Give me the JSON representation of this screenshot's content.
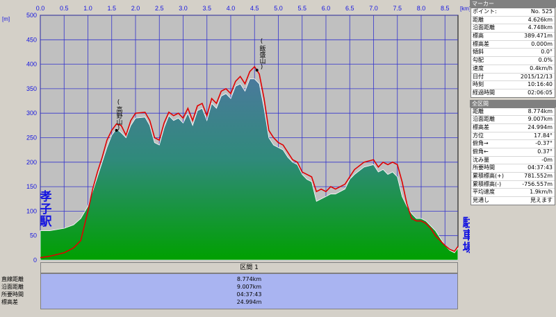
{
  "chart_data": {
    "type": "area",
    "x_unit_label": "[km]",
    "y_unit_label": "[m]",
    "x_ticks": [
      0.0,
      0.5,
      1.0,
      1.5,
      2.0,
      2.5,
      3.0,
      3.5,
      4.0,
      4.5,
      5.0,
      5.5,
      6.0,
      6.5,
      7.0,
      7.5,
      8.0,
      8.5
    ],
    "y_ticks": [
      0,
      50,
      100,
      150,
      200,
      250,
      300,
      350,
      400,
      450,
      500
    ],
    "xlim": [
      0,
      8.774
    ],
    "ylim": [
      0,
      500
    ],
    "grid": true,
    "colors": {
      "plot_bg": "#c0c0c0",
      "grid": "#3333cc",
      "fill_top": "#4a7a9c",
      "fill_bottom": "#00a000",
      "track_line": "#e00000"
    },
    "elevation_fill": {
      "x": [
        0,
        0.2,
        0.5,
        0.7,
        0.85,
        1.0,
        1.1,
        1.2,
        1.3,
        1.4,
        1.5,
        1.6,
        1.7,
        1.8,
        1.9,
        2.0,
        2.2,
        2.3,
        2.4,
        2.5,
        2.6,
        2.7,
        2.8,
        2.9,
        3.0,
        3.1,
        3.2,
        3.3,
        3.4,
        3.5,
        3.6,
        3.7,
        3.8,
        3.9,
        4.0,
        4.1,
        4.2,
        4.3,
        4.4,
        4.5,
        4.6,
        4.7,
        4.8,
        4.9,
        5.0,
        5.1,
        5.2,
        5.3,
        5.4,
        5.5,
        5.6,
        5.7,
        5.8,
        5.9,
        6.0,
        6.1,
        6.2,
        6.3,
        6.4,
        6.5,
        6.6,
        6.8,
        7.0,
        7.1,
        7.2,
        7.3,
        7.4,
        7.5,
        7.6,
        7.7,
        7.8,
        7.9,
        8.0,
        8.1,
        8.2,
        8.3,
        8.4,
        8.5,
        8.6,
        8.7,
        8.774
      ],
      "y": [
        60,
        60,
        65,
        72,
        85,
        110,
        140,
        170,
        200,
        230,
        255,
        268,
        260,
        250,
        275,
        290,
        292,
        275,
        240,
        235,
        270,
        295,
        285,
        290,
        280,
        300,
        275,
        305,
        310,
        285,
        320,
        310,
        335,
        340,
        330,
        355,
        360,
        345,
        370,
        370,
        360,
        310,
        250,
        235,
        230,
        225,
        210,
        200,
        195,
        175,
        165,
        160,
        120,
        125,
        130,
        135,
        135,
        140,
        145,
        165,
        175,
        190,
        195,
        180,
        185,
        175,
        180,
        170,
        130,
        110,
        95,
        85,
        85,
        80,
        70,
        60,
        45,
        30,
        20,
        15,
        25
      ]
    },
    "track_line": {
      "x": [
        0,
        0.2,
        0.5,
        0.7,
        0.85,
        1.0,
        1.1,
        1.2,
        1.3,
        1.4,
        1.5,
        1.6,
        1.7,
        1.8,
        1.9,
        2.0,
        2.2,
        2.3,
        2.4,
        2.5,
        2.6,
        2.7,
        2.8,
        2.9,
        3.0,
        3.1,
        3.2,
        3.3,
        3.4,
        3.5,
        3.6,
        3.7,
        3.8,
        3.9,
        4.0,
        4.1,
        4.2,
        4.3,
        4.4,
        4.5,
        4.6,
        4.7,
        4.8,
        4.9,
        5.0,
        5.1,
        5.2,
        5.3,
        5.4,
        5.5,
        5.6,
        5.7,
        5.8,
        5.9,
        6.0,
        6.1,
        6.2,
        6.3,
        6.4,
        6.5,
        6.6,
        6.8,
        7.0,
        7.1,
        7.2,
        7.3,
        7.4,
        7.5,
        7.6,
        7.7,
        7.8,
        7.9,
        8.0,
        8.1,
        8.2,
        8.3,
        8.4,
        8.5,
        8.6,
        8.7,
        8.774
      ],
      "y": [
        5,
        8,
        15,
        25,
        40,
        100,
        145,
        180,
        210,
        245,
        265,
        278,
        275,
        255,
        285,
        300,
        302,
        285,
        250,
        245,
        280,
        302,
        295,
        300,
        290,
        310,
        285,
        315,
        320,
        295,
        330,
        320,
        345,
        350,
        340,
        365,
        375,
        360,
        385,
        395,
        380,
        330,
        265,
        250,
        240,
        235,
        220,
        205,
        200,
        180,
        175,
        170,
        140,
        145,
        140,
        150,
        145,
        150,
        155,
        170,
        185,
        200,
        205,
        190,
        200,
        195,
        200,
        195,
        160,
        115,
        85,
        80,
        80,
        75,
        65,
        50,
        40,
        30,
        22,
        18,
        28
      ]
    },
    "annotations": [
      {
        "text": "(高野山)",
        "x": 1.6,
        "y": 265
      },
      {
        "text": "(飯盛山)",
        "x": 4.55,
        "y": 388
      }
    ],
    "endpoint_labels": {
      "start": "孝子駅",
      "end": "駐車場"
    }
  },
  "section_bar": {
    "label": "区間 1"
  },
  "summary": [
    {
      "label": "直線距離",
      "value": "8.774km"
    },
    {
      "label": "沿面距離",
      "value": "9.007km"
    },
    {
      "label": "所要時間",
      "value": "04:37:43"
    },
    {
      "label": "標高差",
      "value": "24.994m"
    }
  ],
  "marker_panel": {
    "title": "マーカー",
    "rows": [
      {
        "label": "ポイント:",
        "value": "No. 525"
      },
      {
        "label": "距離",
        "value": "4.626km"
      },
      {
        "label": "沿面距離",
        "value": "4.748km"
      },
      {
        "label": "標高",
        "value": "389.471m"
      },
      {
        "label": "標高差",
        "value": "0.000m"
      },
      {
        "label": "傾斜",
        "value": "0.0°"
      },
      {
        "label": "勾配",
        "value": "0.0%"
      },
      {
        "label": "速度",
        "value": "0.4km/h"
      },
      {
        "label": "日付",
        "value": "2015/12/13"
      },
      {
        "label": "時刻",
        "value": "10:16:40"
      },
      {
        "label": "経過時間",
        "value": "02:06:05"
      }
    ]
  },
  "total_panel": {
    "title": "全区間",
    "rows": [
      {
        "label": "距離",
        "value": "8.774km"
      },
      {
        "label": "沿面距離",
        "value": "9.007km"
      },
      {
        "label": "標高差",
        "value": "24.994m"
      },
      {
        "label": "方位",
        "value": "17.84°"
      },
      {
        "label": "俯角→",
        "value": "-0.37°"
      },
      {
        "label": "俯角←",
        "value": "0.37°"
      },
      {
        "label": "沈み量",
        "value": "-0m"
      },
      {
        "label": "所要時間",
        "value": "04:37:43"
      },
      {
        "label": "累積標高(+)",
        "value": "781.552m"
      },
      {
        "label": "累積標高(-)",
        "value": "-756.557m"
      },
      {
        "label": "平均速度",
        "value": "1.9km/h"
      },
      {
        "label": "見通し",
        "value": "見えます"
      }
    ]
  }
}
